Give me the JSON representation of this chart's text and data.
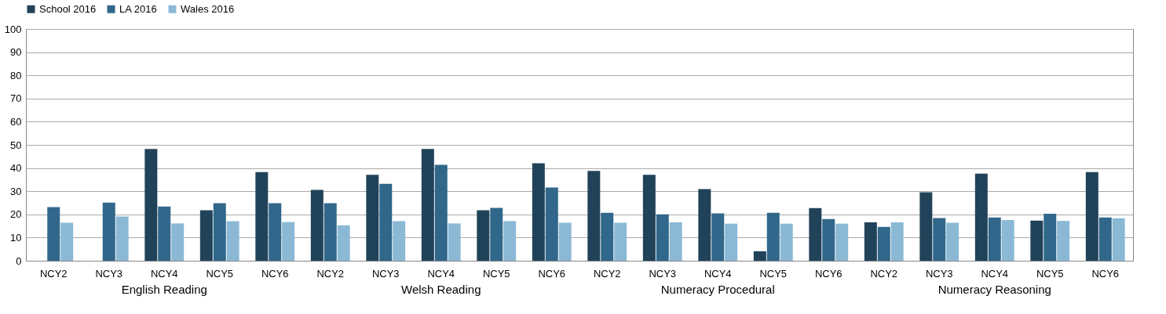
{
  "chart_data": {
    "type": "bar",
    "categories": [
      "NCY2",
      "NCY3",
      "NCY4",
      "NCY5",
      "NCY6",
      "NCY2",
      "NCY3",
      "NCY4",
      "NCY5",
      "NCY6",
      "NCY2",
      "NCY3",
      "NCY4",
      "NCY5",
      "NCY6",
      "NCY2",
      "NCY3",
      "NCY4",
      "NCY5",
      "NCY6"
    ],
    "series": [
      {
        "name": "School 2016",
        "color": "#21435a",
        "values": [
          null,
          null,
          48.2,
          21.8,
          38.3,
          30.6,
          37.1,
          48.2,
          21.8,
          42.1,
          38.8,
          37.1,
          30.9,
          4.1,
          22.7,
          16.6,
          29.6,
          37.6,
          17.3,
          38.3
        ]
      },
      {
        "name": "LA 2016",
        "color": "#30678a",
        "values": [
          23.1,
          25.1,
          23.4,
          24.8,
          24.8,
          24.8,
          33.2,
          41.4,
          22.8,
          31.6,
          20.7,
          20.0,
          20.4,
          20.7,
          18.0,
          14.6,
          18.4,
          18.7,
          20.3,
          18.7
        ]
      },
      {
        "name": "Wales 2016",
        "color": "#8bb9d5",
        "values": [
          16.4,
          19.1,
          16.1,
          17.1,
          16.7,
          15.3,
          17.1,
          16.1,
          17.1,
          16.4,
          16.4,
          16.6,
          16.0,
          16.0,
          16.0,
          16.6,
          16.4,
          17.6,
          17.2,
          18.3
        ]
      }
    ],
    "annotations": [
      "English Reading",
      "Welsh Reading",
      "Numeracy Procedural",
      "Numeracy Reasoning"
    ],
    "ylim": [
      0,
      100
    ],
    "yticks": [
      0,
      10,
      20,
      30,
      40,
      50,
      60,
      70,
      80,
      90,
      100
    ],
    "grid": "y",
    "legend": "top"
  }
}
